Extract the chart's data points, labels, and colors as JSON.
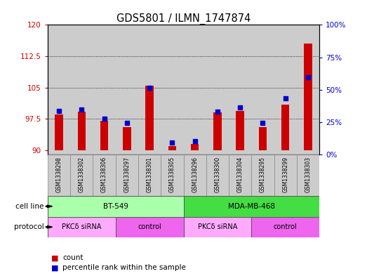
{
  "title": "GDS5801 / ILMN_1747874",
  "samples": [
    "GSM1338298",
    "GSM1338302",
    "GSM1338306",
    "GSM1338297",
    "GSM1338301",
    "GSM1338305",
    "GSM1338296",
    "GSM1338300",
    "GSM1338304",
    "GSM1338295",
    "GSM1338299",
    "GSM1338303"
  ],
  "red_values": [
    98.5,
    99.2,
    97.0,
    95.5,
    105.5,
    91.0,
    91.5,
    99.0,
    99.5,
    95.5,
    101.0,
    115.5
  ],
  "blue_values": [
    99.5,
    99.8,
    97.5,
    96.5,
    105.0,
    91.8,
    92.2,
    99.2,
    100.2,
    96.5,
    102.5,
    107.5
  ],
  "ylim_left": [
    89,
    120
  ],
  "ylim_right": [
    0,
    100
  ],
  "yticks_left": [
    90,
    97.5,
    105,
    112.5,
    120
  ],
  "yticks_right": [
    0,
    25,
    50,
    75,
    100
  ],
  "ytick_labels_left": [
    "90",
    "97.5",
    "105",
    "112.5",
    "120"
  ],
  "ytick_labels_right": [
    "0%",
    "25%",
    "50%",
    "75%",
    "100%"
  ],
  "cell_line_groups": [
    {
      "label": "BT-549",
      "start": 0,
      "end": 5,
      "color": "#aaffaa"
    },
    {
      "label": "MDA-MB-468",
      "start": 6,
      "end": 11,
      "color": "#44dd44"
    }
  ],
  "protocol_groups": [
    {
      "label": "PKCδ siRNA",
      "start": 0,
      "end": 2,
      "color": "#ffaaff"
    },
    {
      "label": "control",
      "start": 3,
      "end": 5,
      "color": "#ee66ee"
    },
    {
      "label": "PKCδ siRNA",
      "start": 6,
      "end": 8,
      "color": "#ffaaff"
    },
    {
      "label": "control",
      "start": 9,
      "end": 11,
      "color": "#ee66ee"
    }
  ],
  "red_color": "#cc0000",
  "blue_color": "#0000cc",
  "bar_width": 0.35,
  "base_value": 90,
  "sample_bg_color": "#cccccc",
  "fig_bg": "#ffffff"
}
